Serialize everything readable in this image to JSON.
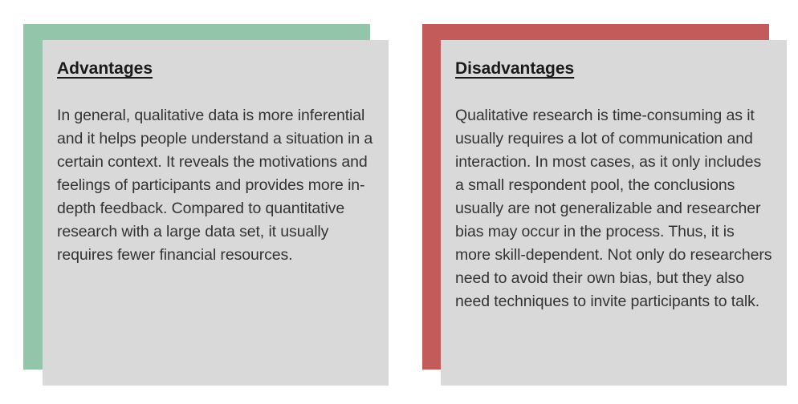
{
  "colors": {
    "advantages_accent": "#93c5aa",
    "disadvantages_accent": "#c25b5a",
    "card_background": "#d9d9d9"
  },
  "advantages": {
    "title": "Advantages",
    "body": "In general, qualitative data is more inferential and it helps people understand a situation in a certain context. It reveals the motivations and feelings of participants and provides more in-depth feedback. Compared to quantitative research with a large data set, it usually requires fewer financial resources."
  },
  "disadvantages": {
    "title": "Disadvantages",
    "body": "Qualitative research is time-consuming as it usually requires a lot of communication and interaction. In most cases, as it only includes a small respondent pool, the conclusions usually are not generalizable and researcher bias may occur in the process. Thus, it is more skill-dependent. Not only do researchers need to avoid their own bias, but they also need techniques to invite participants to talk."
  }
}
